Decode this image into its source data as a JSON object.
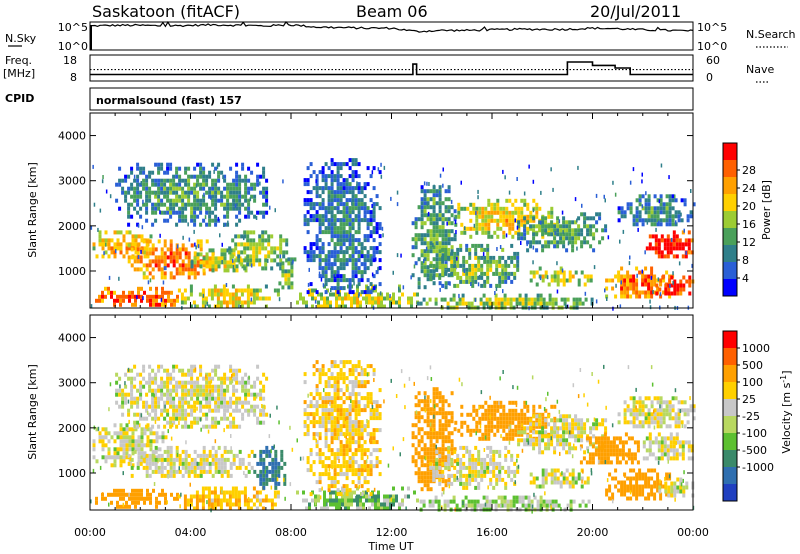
{
  "header": {
    "station": "Saskatoon (fitACF)",
    "beam": "Beam 06",
    "date": "20/Jul/2011"
  },
  "summary": {
    "nsky_label": "N.Sky",
    "nsky_ticks": [
      "10^5",
      "10^0"
    ],
    "nsearch_label": "N.Search",
    "nsearch_ticks": [
      "10^5",
      "10^0"
    ],
    "freq_label": "Freq.",
    "freq_unit": "[MHz]",
    "freq_ticks": [
      "18",
      "8"
    ],
    "nave_label": "Nave",
    "nave_ticks": [
      "60",
      "0"
    ],
    "cpid_label": "CPID",
    "cpid_value": "normalsound (fast) 157"
  },
  "chart_data": [
    {
      "type": "line",
      "name": "nsky-nsearch",
      "x": [
        "00:00",
        "01:00",
        "02:00",
        "03:00",
        "04:00",
        "05:00",
        "06:00",
        "07:00",
        "08:00",
        "09:00",
        "10:00",
        "11:00",
        "12:00",
        "13:00",
        "14:00",
        "15:00",
        "16:00",
        "17:00",
        "18:00",
        "19:00",
        "20:00",
        "21:00",
        "22:00",
        "23:00",
        "24:00"
      ],
      "series": [
        {
          "values": [
            4.3,
            4.4,
            4.4,
            4.3,
            4.4,
            4.5,
            4.4,
            4.3,
            4.5,
            4.1,
            4.0,
            3.9,
            3.9,
            3.3,
            3.5,
            3.5,
            3.6,
            3.7,
            3.7,
            3.7,
            3.9,
            3.8,
            3.6,
            3.5,
            3.4
          ]
        }
      ]
    },
    {
      "type": "line",
      "name": "frequency-nave",
      "x_hours": [
        0,
        12.5,
        12.85,
        13.0,
        19.0,
        20.0,
        20.9,
        21.5,
        24
      ],
      "ylim_freq": [
        8,
        18
      ],
      "ylim_nave": [
        0,
        60
      ],
      "series": [
        {
          "values": [
            10.5,
            10.5,
            14.5,
            10.5,
            15.3,
            14.0,
            13.0,
            10.5,
            10.5
          ]
        },
        {
          "values": [
            12.4,
            12.4,
            12.4,
            12.4,
            12.4,
            12.4,
            12.4,
            12.4,
            12.4
          ]
        }
      ]
    },
    {
      "type": "heatmap",
      "name": "power",
      "xlabel": "Time UT",
      "ylabel": "Slant Range [km]",
      "xticks": [
        "00:00",
        "04:00",
        "08:00",
        "12:00",
        "16:00",
        "20:00",
        "00:00"
      ],
      "yticks": [
        "1000",
        "2000",
        "3000",
        "4000"
      ],
      "ylim": [
        180,
        4500
      ],
      "xlim_hours": [
        0,
        24
      ],
      "colorbar_label": "Power [dB]",
      "colorbar_ticks": [
        "4",
        "8",
        "12",
        "16",
        "20",
        "24",
        "28"
      ],
      "colors": [
        "#0000ff",
        "#2a5fd6",
        "#2f7f8a",
        "#4aa05a",
        "#9ccc33",
        "#ffd000",
        "#ffa000",
        "#ff6000",
        "#ff0000"
      ],
      "regions": [
        {
          "t0": 0.1,
          "t1": 2.5,
          "r0": 1300,
          "r1": 1900,
          "v": 18
        },
        {
          "t0": 1.5,
          "t1": 5.0,
          "r0": 900,
          "r1": 1700,
          "v": 22
        },
        {
          "t0": 4.0,
          "t1": 6.2,
          "r0": 1000,
          "r1": 1500,
          "v": 14
        },
        {
          "t0": 0.2,
          "t1": 3.5,
          "r0": 250,
          "r1": 650,
          "v": 24
        },
        {
          "t0": 3.5,
          "t1": 7.5,
          "r0": 200,
          "r1": 700,
          "v": 16
        },
        {
          "t0": 1.0,
          "t1": 7.0,
          "r0": 2000,
          "r1": 3400,
          "v": 6
        },
        {
          "t0": 5.5,
          "t1": 7.8,
          "r0": 1100,
          "r1": 1900,
          "v": 12
        },
        {
          "t0": 7.5,
          "t1": 8.2,
          "r0": 600,
          "r1": 1300,
          "v": 10
        },
        {
          "t0": 8.2,
          "t1": 13.0,
          "r0": 180,
          "r1": 700,
          "v": 14
        },
        {
          "t0": 8.5,
          "t1": 11.5,
          "r0": 500,
          "r1": 3500,
          "v": 4
        },
        {
          "t0": 12.8,
          "t1": 14.5,
          "r0": 600,
          "r1": 2900,
          "v": 8
        },
        {
          "t0": 13.5,
          "t1": 17.0,
          "r0": 700,
          "r1": 1600,
          "v": 10
        },
        {
          "t0": 13.0,
          "t1": 20.0,
          "r0": 180,
          "r1": 500,
          "v": 12
        },
        {
          "t0": 14.5,
          "t1": 18.5,
          "r0": 1800,
          "r1": 2600,
          "v": 16
        },
        {
          "t0": 17.0,
          "t1": 20.5,
          "r0": 1500,
          "r1": 2300,
          "v": 8
        },
        {
          "t0": 17.5,
          "t1": 20.0,
          "r0": 700,
          "r1": 1100,
          "v": 14
        },
        {
          "t0": 20.5,
          "t1": 23.2,
          "r0": 400,
          "r1": 1100,
          "v": 22
        },
        {
          "t0": 22.0,
          "t1": 24.0,
          "r0": 1300,
          "r1": 1900,
          "v": 28
        },
        {
          "t0": 22.5,
          "t1": 24.0,
          "r0": 500,
          "r1": 900,
          "v": 28
        },
        {
          "t0": 21.0,
          "t1": 24.0,
          "r0": 2000,
          "r1": 2700,
          "v": 6
        }
      ]
    },
    {
      "type": "heatmap",
      "name": "velocity",
      "xlabel": "Time UT",
      "ylabel": "Slant Range [km]",
      "xticks": [
        "00:00",
        "04:00",
        "08:00",
        "12:00",
        "16:00",
        "20:00",
        "00:00"
      ],
      "yticks": [
        "1000",
        "2000",
        "3000",
        "4000"
      ],
      "ylim": [
        180,
        4500
      ],
      "xlim_hours": [
        0,
        24
      ],
      "colorbar_label": "Velocity [m s",
      "colorbar_label_sup": "-1",
      "colorbar_label_end": "]",
      "colorbar_ticks": [
        "1000",
        "500",
        "100",
        "25",
        "-25",
        "-100",
        "-500",
        "-1000"
      ],
      "colors": [
        "#2040c0",
        "#2f6fb0",
        "#3a8a6a",
        "#5cc030",
        "#b8d860",
        "#c8c8c8",
        "#ffd000",
        "#ffa000",
        "#ff6000",
        "#ff0000"
      ],
      "regions": [
        {
          "t0": 0.1,
          "t1": 3.0,
          "r0": 1200,
          "r1": 2100,
          "v": 0
        },
        {
          "t0": 1.5,
          "t1": 6.5,
          "r0": 900,
          "r1": 1600,
          "v": 0
        },
        {
          "t0": 0.2,
          "t1": 3.5,
          "r0": 250,
          "r1": 650,
          "v": -200
        },
        {
          "t0": 3.5,
          "t1": 7.5,
          "r0": 200,
          "r1": 700,
          "v": -80
        },
        {
          "t0": 1.0,
          "t1": 7.0,
          "r0": 2000,
          "r1": 3400,
          "v": 0
        },
        {
          "t0": 6.5,
          "t1": 7.8,
          "r0": 700,
          "r1": 1600,
          "v": 300
        },
        {
          "t0": 8.2,
          "t1": 13.0,
          "r0": 180,
          "r1": 700,
          "v": 60
        },
        {
          "t0": 8.5,
          "t1": 11.5,
          "r0": 500,
          "r1": 3500,
          "v": -60
        },
        {
          "t0": 12.8,
          "t1": 14.5,
          "r0": 600,
          "r1": 2900,
          "v": -200
        },
        {
          "t0": 13.5,
          "t1": 17.0,
          "r0": 700,
          "r1": 1600,
          "v": 0
        },
        {
          "t0": 13.0,
          "t1": 20.0,
          "r0": 180,
          "r1": 500,
          "v": 40
        },
        {
          "t0": 14.5,
          "t1": 18.5,
          "r0": 1800,
          "r1": 2600,
          "v": -200
        },
        {
          "t0": 17.0,
          "t1": 20.5,
          "r0": 1500,
          "r1": 2300,
          "v": 0
        },
        {
          "t0": 17.5,
          "t1": 20.0,
          "r0": 700,
          "r1": 1100,
          "v": 0
        },
        {
          "t0": 20.5,
          "t1": 23.2,
          "r0": 400,
          "r1": 1100,
          "v": -200
        },
        {
          "t0": 22.0,
          "t1": 24.0,
          "r0": 1300,
          "r1": 1900,
          "v": 0
        },
        {
          "t0": 22.5,
          "t1": 24.0,
          "r0": 500,
          "r1": 900,
          "v": 0
        },
        {
          "t0": 21.0,
          "t1": 24.0,
          "r0": 2000,
          "r1": 2700,
          "v": 0
        },
        {
          "t0": 19.5,
          "t1": 22.0,
          "r0": 1200,
          "r1": 1900,
          "v": -200
        }
      ]
    }
  ]
}
